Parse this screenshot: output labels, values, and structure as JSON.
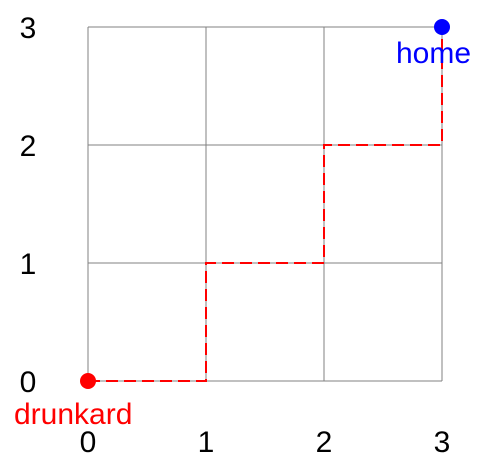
{
  "grid": {
    "size": 3,
    "line_color": "#808080"
  },
  "x_ticks": [
    "0",
    "1",
    "2",
    "3"
  ],
  "y_ticks": [
    "0",
    "1",
    "2",
    "3"
  ],
  "start": {
    "label": "drunkard",
    "point": [
      0,
      0
    ],
    "color": "#ff0000"
  },
  "end": {
    "label": "home",
    "point": [
      3,
      3
    ],
    "color": "#0000ff"
  },
  "path": {
    "color": "#ff0000",
    "style": "dashed",
    "points": [
      [
        0,
        0
      ],
      [
        1,
        0
      ],
      [
        1,
        1
      ],
      [
        2,
        1
      ],
      [
        2,
        2
      ],
      [
        3,
        2
      ],
      [
        3,
        3
      ]
    ]
  }
}
